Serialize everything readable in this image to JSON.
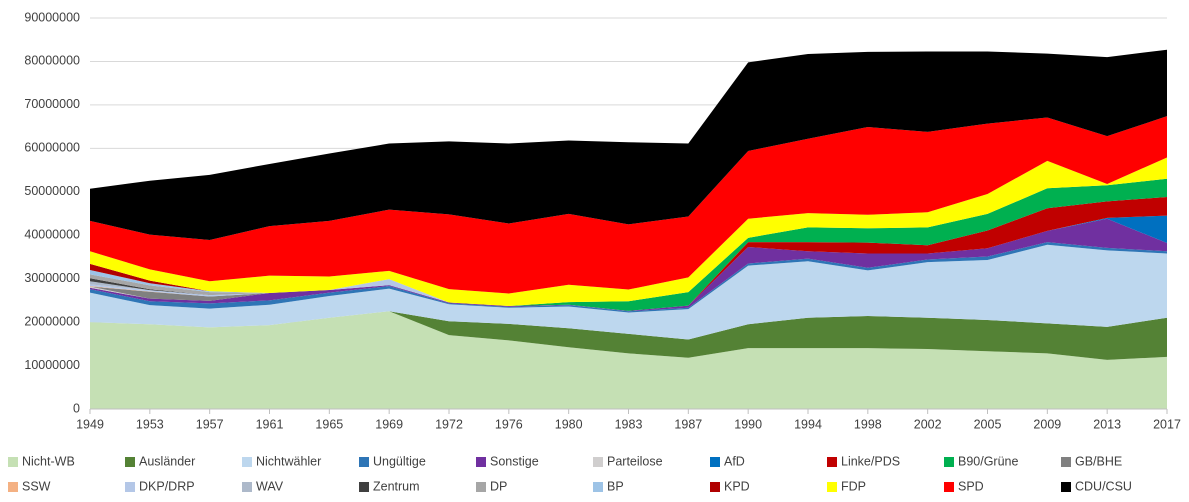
{
  "chart_data": {
    "type": "stacked_area",
    "categories": [
      "1949",
      "1953",
      "1957",
      "1961",
      "1965",
      "1969",
      "1972",
      "1976",
      "1980",
      "1983",
      "1987",
      "1990",
      "1994",
      "1998",
      "2002",
      "2005",
      "2009",
      "2013",
      "2017"
    ],
    "ylim": [
      0,
      90000000
    ],
    "yticks": [
      0,
      10000000,
      20000000,
      30000000,
      40000000,
      50000000,
      60000000,
      70000000,
      80000000,
      90000000
    ],
    "grid": true,
    "legend": "bottom",
    "series": [
      {
        "name": "Nicht-WB",
        "color": "#c5e0b4",
        "values": [
          20000000,
          19500000,
          18800000,
          19300000,
          21000000,
          22500000,
          17000000,
          15800000,
          14200000,
          12800000,
          11800000,
          14000000,
          14000000,
          14000000,
          13800000,
          13300000,
          12800000,
          11300000,
          12000000
        ]
      },
      {
        "name": "Ausländer",
        "color": "#548235",
        "values": [
          0,
          0,
          0,
          0,
          0,
          0,
          3200000,
          3800000,
          4400000,
          4500000,
          4200000,
          5500000,
          7000000,
          7400000,
          7200000,
          7200000,
          6900000,
          7600000,
          9000000
        ]
      },
      {
        "name": "Nichtwähler",
        "color": "#bdd7ee",
        "values": [
          6800000,
          4400000,
          4300000,
          4700000,
          5000000,
          5200000,
          3900000,
          3700000,
          5000000,
          4900000,
          7000000,
          13500000,
          13000000,
          10500000,
          12800000,
          13800000,
          18100000,
          17600000,
          14800000
        ]
      },
      {
        "name": "Ungültige",
        "color": "#2e75b6",
        "values": [
          800000,
          900000,
          1200000,
          1000000,
          800000,
          600000,
          200000,
          200000,
          300000,
          300000,
          300000,
          500000,
          600000,
          600000,
          600000,
          800000,
          600000,
          600000,
          500000
        ]
      },
      {
        "name": "Sonstige",
        "color": "#7030a0",
        "values": [
          300000,
          600000,
          600000,
          1700000,
          600000,
          200000,
          200000,
          200000,
          100000,
          100000,
          500000,
          3800000,
          1700000,
          3300000,
          1400000,
          1900000,
          2600000,
          6700000,
          1900000
        ]
      },
      {
        "name": "Parteilose",
        "color": "#d0cece",
        "values": [
          300000,
          0,
          0,
          0,
          0,
          0,
          0,
          0,
          0,
          0,
          0,
          0,
          0,
          0,
          0,
          0,
          0,
          0,
          0
        ]
      },
      {
        "name": "AfD",
        "color": "#0070c0",
        "values": [
          0,
          0,
          0,
          0,
          0,
          0,
          0,
          0,
          0,
          0,
          0,
          0,
          0,
          0,
          0,
          0,
          0,
          200000,
          6300000
        ]
      },
      {
        "name": "Linke/PDS",
        "color": "#c00000",
        "values": [
          0,
          0,
          0,
          0,
          0,
          0,
          0,
          0,
          0,
          0,
          0,
          1100000,
          2100000,
          2500000,
          1900000,
          4100000,
          5200000,
          3800000,
          4300000
        ]
      },
      {
        "name": "B90/Grüne",
        "color": "#00b050",
        "values": [
          0,
          0,
          0,
          0,
          0,
          0,
          0,
          0,
          600000,
          2200000,
          3100000,
          1000000,
          3400000,
          3300000,
          4100000,
          3800000,
          4600000,
          3700000,
          4200000
        ]
      },
      {
        "name": "GB/BHE",
        "color": "#808080",
        "values": [
          0,
          1600000,
          1000000,
          0,
          0,
          0,
          0,
          0,
          0,
          0,
          0,
          0,
          0,
          0,
          0,
          0,
          0,
          0,
          0
        ]
      },
      {
        "name": "SSW",
        "color": "#f4b183",
        "values": [
          100000,
          50000,
          0,
          0,
          0,
          0,
          0,
          0,
          0,
          0,
          0,
          0,
          0,
          0,
          0,
          0,
          0,
          0,
          0
        ]
      },
      {
        "name": "DKP/DRP",
        "color": "#b4c7e7",
        "values": [
          400000,
          300000,
          300000,
          0,
          0,
          1400000,
          0,
          0,
          0,
          0,
          0,
          0,
          0,
          0,
          0,
          0,
          0,
          0,
          0
        ]
      },
      {
        "name": "WAV",
        "color": "#adb9ca",
        "values": [
          700000,
          0,
          0,
          0,
          0,
          0,
          0,
          0,
          0,
          0,
          0,
          0,
          0,
          0,
          0,
          0,
          0,
          0,
          0
        ]
      },
      {
        "name": "Zentrum",
        "color": "#404040",
        "values": [
          700000,
          200000,
          0,
          0,
          0,
          0,
          0,
          0,
          0,
          0,
          0,
          0,
          0,
          0,
          0,
          0,
          0,
          0,
          0
        ]
      },
      {
        "name": "DP",
        "color": "#a6a6a6",
        "values": [
          900000,
          900000,
          700000,
          0,
          0,
          0,
          0,
          0,
          0,
          0,
          0,
          0,
          0,
          0,
          0,
          0,
          0,
          0,
          0
        ]
      },
      {
        "name": "BP",
        "color": "#9dc3e6",
        "values": [
          1000000,
          500000,
          200000,
          0,
          0,
          0,
          0,
          0,
          0,
          0,
          0,
          0,
          0,
          0,
          0,
          0,
          0,
          0,
          0
        ]
      },
      {
        "name": "KPD",
        "color": "#b00000",
        "values": [
          1400000,
          600000,
          0,
          0,
          0,
          0,
          0,
          0,
          0,
          0,
          0,
          0,
          0,
          0,
          0,
          0,
          0,
          0,
          0
        ]
      },
      {
        "name": "FDP",
        "color": "#ffff00",
        "values": [
          2900000,
          2600000,
          2300000,
          4000000,
          3100000,
          1900000,
          3100000,
          2900000,
          4000000,
          2700000,
          3400000,
          4400000,
          3300000,
          3100000,
          3500000,
          4600000,
          6300000,
          300000,
          4900000
        ]
      },
      {
        "name": "SPD",
        "color": "#ff0000",
        "values": [
          7000000,
          8000000,
          9500000,
          11400000,
          12800000,
          14100000,
          17200000,
          16100000,
          16300000,
          15000000,
          14000000,
          15600000,
          17100000,
          20200000,
          18500000,
          16200000,
          10000000,
          11000000,
          9500000
        ]
      },
      {
        "name": "CDU/CSU",
        "color": "#000000",
        "values": [
          7400000,
          12400000,
          15000000,
          14300000,
          15500000,
          15200000,
          16800000,
          18400000,
          16900000,
          18900000,
          16800000,
          20400000,
          19500000,
          17300000,
          18500000,
          16600000,
          14700000,
          18200000,
          15300000
        ]
      }
    ]
  }
}
